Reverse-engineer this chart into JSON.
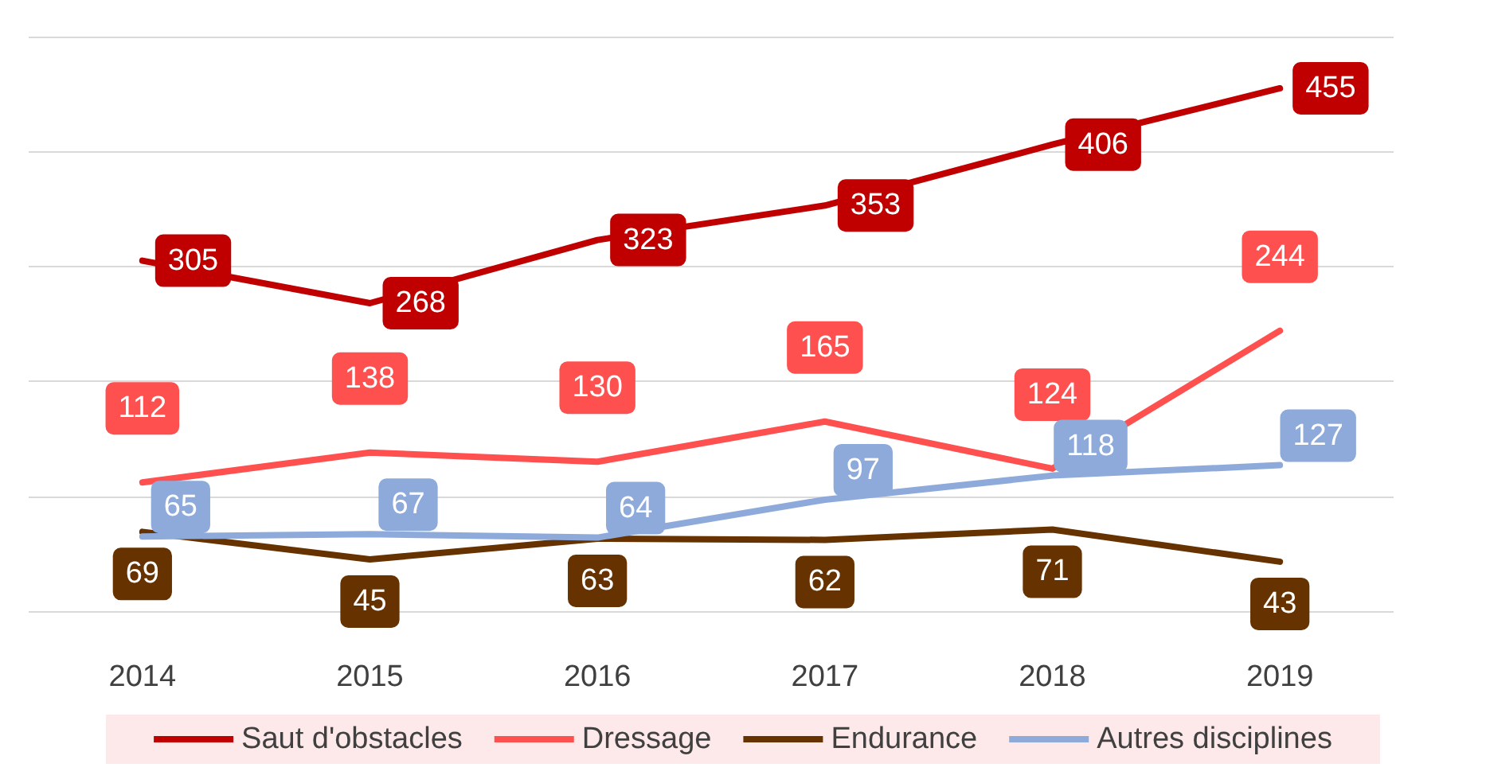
{
  "chart_data": {
    "type": "line",
    "categories": [
      "2014",
      "2015",
      "2016",
      "2017",
      "2018",
      "2019"
    ],
    "series": [
      {
        "name": "Saut d'obstacles",
        "color": "#c00000",
        "values": [
          305,
          268,
          323,
          353,
          406,
          455
        ]
      },
      {
        "name": "Dressage",
        "color": "#ff5050",
        "values": [
          112,
          138,
          130,
          165,
          124,
          244
        ]
      },
      {
        "name": "Endurance",
        "color": "#663300",
        "values": [
          69,
          45,
          63,
          62,
          71,
          43
        ]
      },
      {
        "name": "Autres disciplines",
        "color": "#8eaadb",
        "values": [
          65,
          67,
          64,
          97,
          118,
          127
        ]
      }
    ],
    "tick_labels": "x",
    "grid": "y",
    "legend": "bottom",
    "marker": "none",
    "line_style": "solid",
    "data_labels": true
  }
}
